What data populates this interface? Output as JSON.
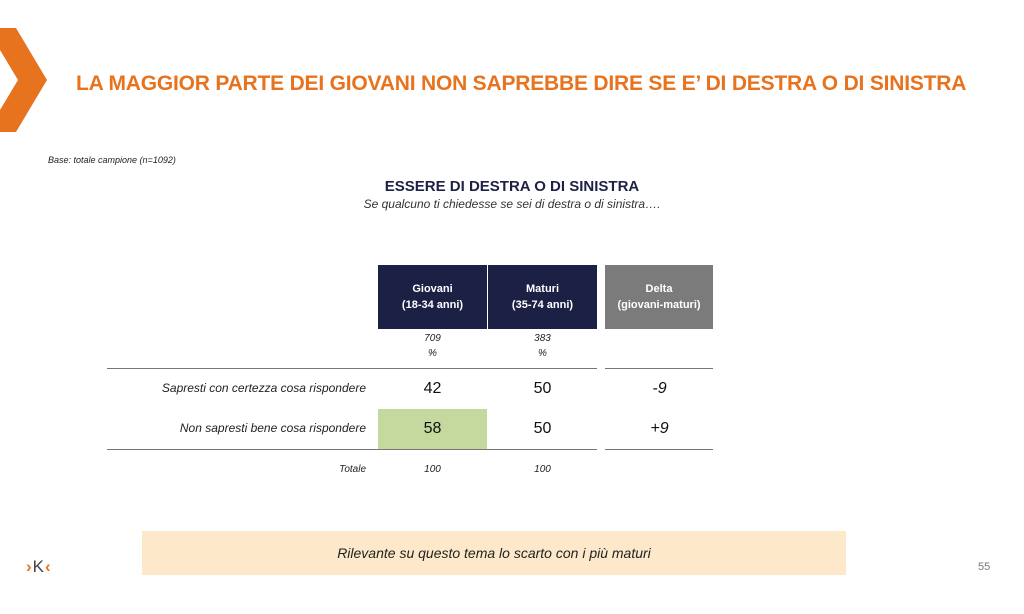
{
  "header": {
    "title": "LA MAGGIOR PARTE DEI GIOVANI NON SAPREBBE DIRE SE E’ DI DESTRA O DI SINISTRA"
  },
  "base_note": "Base: totale campione (n=1092)",
  "question": {
    "title": "ESSERE DI DESTRA O DI SINISTRA",
    "subtitle": "Se qualcuno ti chiedesse se sei di destra o di sinistra…."
  },
  "table": {
    "columns": [
      {
        "name": "Giovani",
        "range": "(18-34 anni)",
        "n": "709",
        "unit": "%"
      },
      {
        "name": "Maturi",
        "range": "(35-74 anni)",
        "n": "383",
        "unit": "%"
      },
      {
        "name": "Delta",
        "range": "(giovani-maturi)"
      }
    ],
    "rows": [
      {
        "label": "Sapresti con certezza cosa rispondere",
        "giovani": "42",
        "maturi": "50",
        "delta": "-9"
      },
      {
        "label": "Non sapresti bene cosa rispondere",
        "giovani": "58",
        "maturi": "50",
        "delta": "+9"
      }
    ],
    "total": {
      "label": "Totale",
      "giovani": "100",
      "maturi": "100"
    }
  },
  "footer": {
    "note": "Rilevante su questo tema lo scarto con i più maturi",
    "page_number": "55",
    "logo_text": "K"
  },
  "colors": {
    "accent": "#E8731E",
    "navy": "#1c2044",
    "delta_header": "#7b7b7b",
    "highlight": "#c5d99e",
    "note_bg": "#FDE9C9"
  }
}
